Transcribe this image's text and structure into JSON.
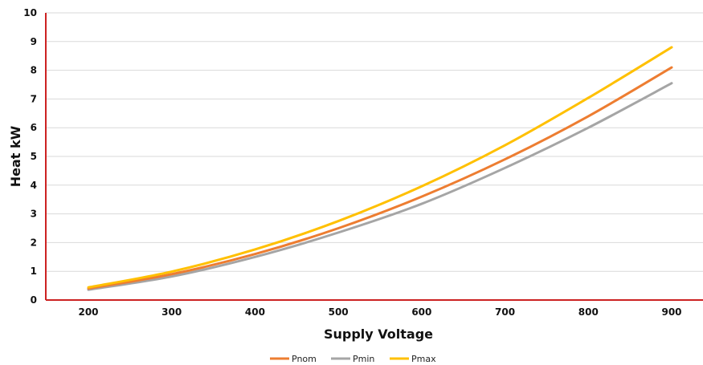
{
  "chart_data": {
    "type": "line",
    "title": "",
    "xlabel": "Supply Voltage",
    "ylabel": "Heat kW",
    "categories": [
      "200",
      "300",
      "400",
      "500",
      "600",
      "700",
      "800",
      "900"
    ],
    "x": [
      200,
      300,
      400,
      500,
      600,
      700,
      800,
      900
    ],
    "ylim": [
      0,
      10
    ],
    "yticks": [
      0,
      1,
      2,
      3,
      4,
      5,
      6,
      7,
      8,
      9,
      10
    ],
    "grid": true,
    "legend_position": "bottom",
    "axis_color": "#cc2222",
    "series": [
      {
        "name": "Pnom",
        "color": "#ed7d31",
        "values": [
          0.4,
          0.9,
          1.6,
          2.5,
          3.6,
          4.9,
          6.4,
          8.1
        ]
      },
      {
        "name": "Pmin",
        "color": "#a5a5a5",
        "values": [
          0.36,
          0.82,
          1.5,
          2.35,
          3.35,
          4.6,
          6.0,
          7.55
        ]
      },
      {
        "name": "Pmax",
        "color": "#ffc000",
        "values": [
          0.44,
          0.99,
          1.76,
          2.75,
          3.96,
          5.39,
          7.04,
          8.8
        ]
      }
    ]
  }
}
